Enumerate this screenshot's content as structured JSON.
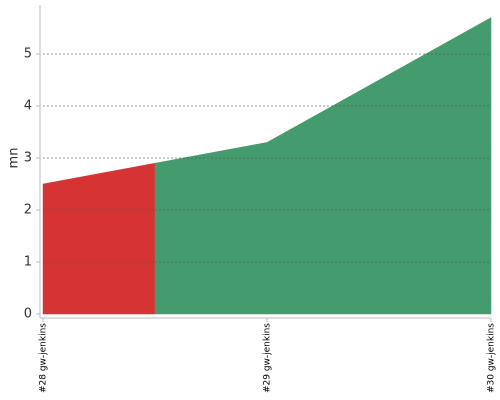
{
  "chart_data": {
    "type": "area",
    "y_label": "mn",
    "categories": [
      "#28 gw-jenkins",
      "#29 gw-jenkins",
      "#30 gw-jenkins"
    ],
    "values": [
      2.5,
      3.3,
      5.7
    ],
    "colors": [
      "#d63434",
      "#449c6e",
      "#449c6e"
    ],
    "ylim": [
      0,
      6
    ],
    "yticks": [
      0,
      1,
      2,
      3,
      4,
      5
    ],
    "grid": true
  }
}
